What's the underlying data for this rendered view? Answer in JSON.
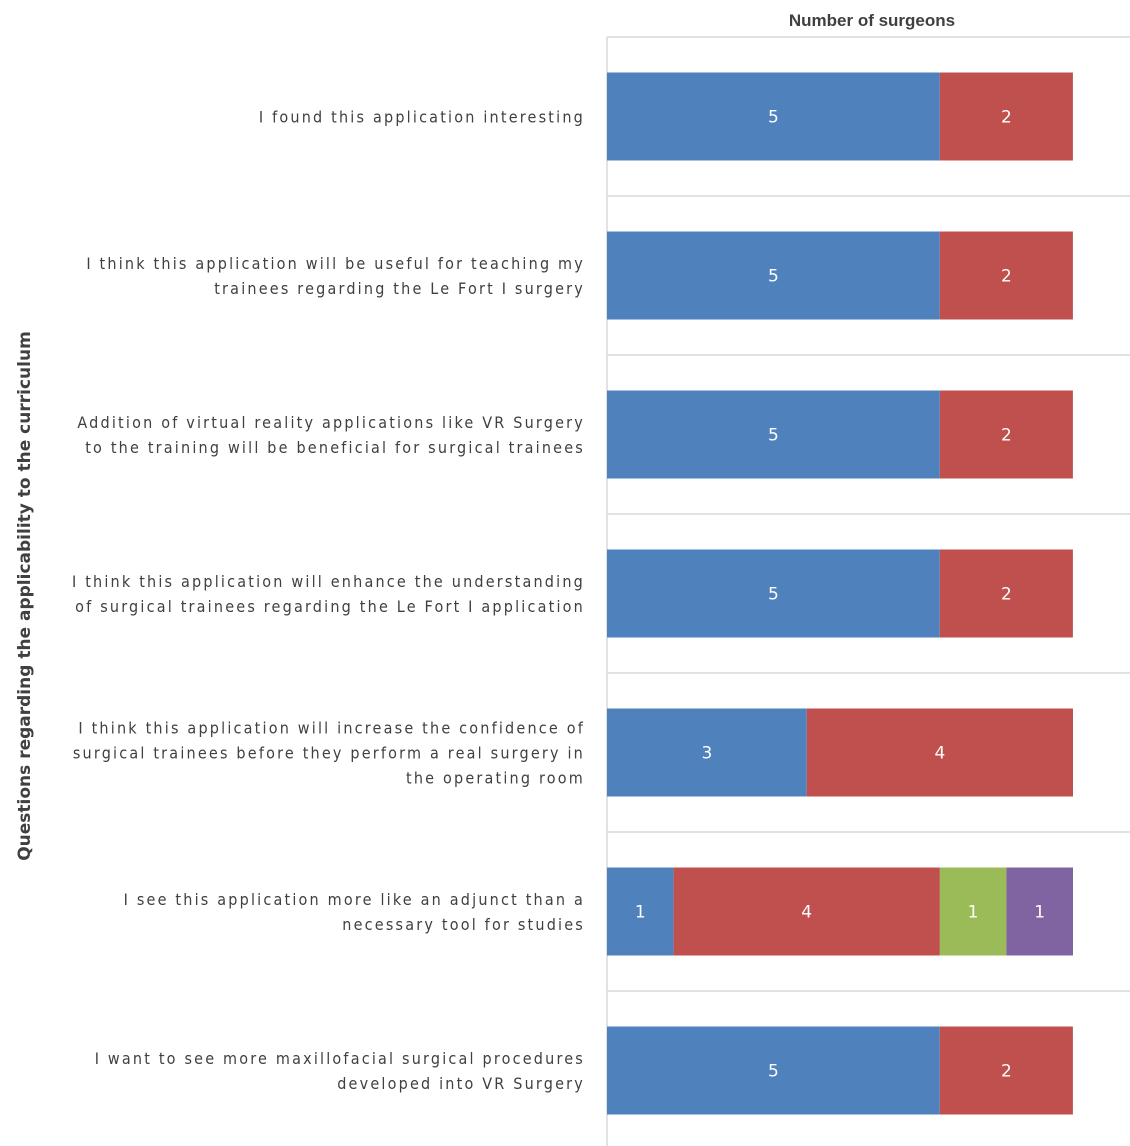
{
  "chart_data": {
    "type": "bar",
    "orientation": "horizontal",
    "stacked": true,
    "title": "",
    "xlabel": "Number of surgeons",
    "ylabel": "Questions regarding the applicability to the curriculum",
    "xlim": [
      0,
      7.5
    ],
    "grid": true,
    "legend": "none",
    "categories": [
      [
        "I found this application interesting"
      ],
      [
        "I think this application will be useful for teaching my",
        "trainees regarding the Le Fort I surgery"
      ],
      [
        "Addition of virtual reality applications like VR Surgery",
        "to the training will be beneficial for surgical trainees"
      ],
      [
        "I think this application will enhance the understanding",
        "of surgical trainees regarding the Le Fort I application"
      ],
      [
        "I think this application will increase the confidence of",
        "surgical trainees before they perform a real surgery in",
        "the operating room"
      ],
      [
        "I see this application more like an adjunct than a",
        "necessary tool for studies"
      ],
      [
        "I want to see more maxillofacial surgical procedures",
        "developed into VR Surgery"
      ]
    ],
    "series": [
      {
        "color": "#4f81bd",
        "values": [
          5,
          5,
          5,
          5,
          3,
          1,
          5
        ]
      },
      {
        "color": "#c0504d",
        "values": [
          2,
          2,
          2,
          2,
          4,
          4,
          2
        ]
      },
      {
        "color": "#9bbb59",
        "values": [
          0,
          0,
          0,
          0,
          0,
          1,
          0
        ]
      },
      {
        "color": "#8064a2",
        "values": [
          0,
          0,
          0,
          0,
          0,
          1,
          0
        ]
      }
    ]
  }
}
